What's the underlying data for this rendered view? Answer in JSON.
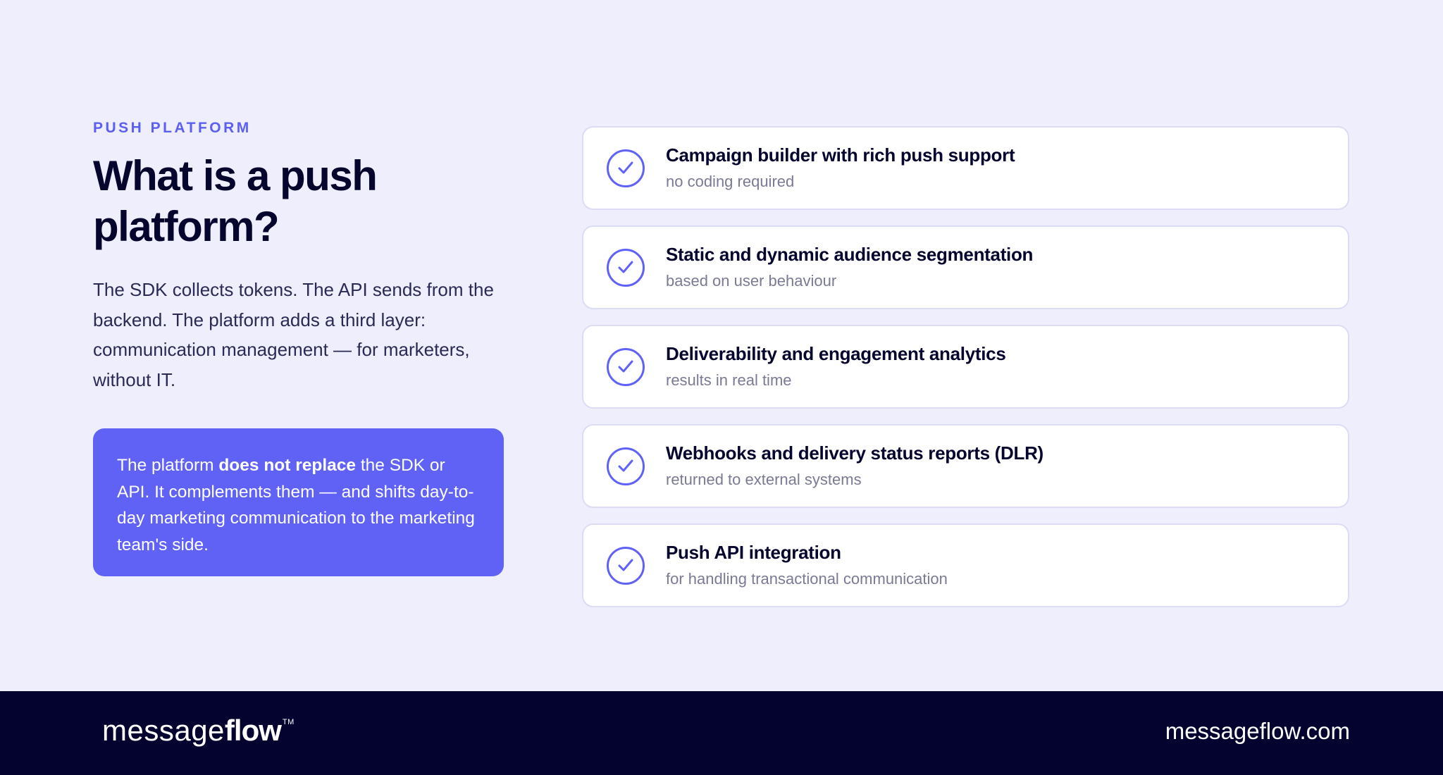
{
  "eyebrow": "PUSH PLATFORM",
  "title": "What is a push platform?",
  "lead": "The SDK collects tokens. The API sends from the backend. The platform adds a third layer: communication management — for marketers, without IT.",
  "callout": {
    "before": "The platform ",
    "bold": "does not replace",
    "after": " the SDK or API. It complements them — and shifts day-to-day marketing communication to the marketing team's side."
  },
  "features": [
    {
      "title": "Campaign builder with rich push support",
      "subtitle": "no coding required",
      "icon": "check-circle-icon"
    },
    {
      "title": "Static and dynamic audience segmentation",
      "subtitle": "based on user behaviour",
      "icon": "check-circle-icon"
    },
    {
      "title": "Deliverability and engagement analytics",
      "subtitle": "results in real time",
      "icon": "check-circle-icon"
    },
    {
      "title": "Webhooks and delivery status reports (DLR)",
      "subtitle": "returned to external systems",
      "icon": "check-circle-icon"
    },
    {
      "title": "Push API integration",
      "subtitle": "for handling transactional communication",
      "icon": "check-circle-icon"
    }
  ],
  "footer": {
    "logo_light": "message",
    "logo_bold": "flow",
    "logo_tm": "TM",
    "site": "messageflow.com"
  },
  "colors": {
    "accent": "#6062f6",
    "background": "#eeeefd",
    "footer": "#04032f",
    "text": "#05052e"
  }
}
